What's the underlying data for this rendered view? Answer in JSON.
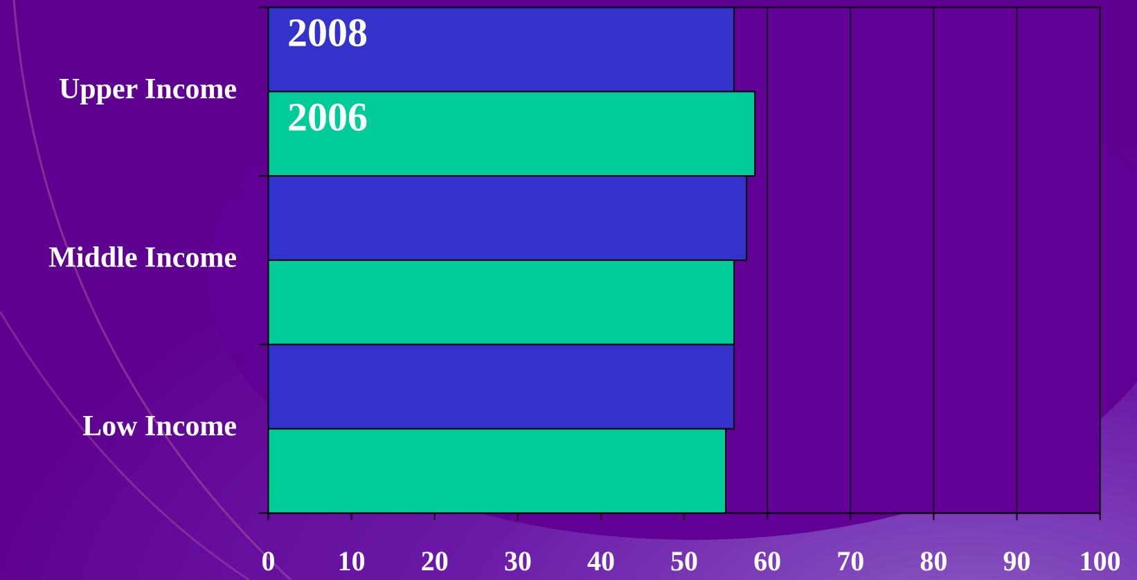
{
  "chart_data": {
    "type": "hbar",
    "categories": [
      "Upper Income",
      "Middle Income",
      "Low Income"
    ],
    "series": [
      {
        "name": "2008",
        "color": "#3333cc",
        "values": [
          56,
          57.5,
          56
        ]
      },
      {
        "name": "2006",
        "color": "#00cc99",
        "values": [
          58.5,
          56,
          55
        ]
      }
    ],
    "xlim": [
      0,
      100
    ],
    "xticks": [
      0,
      10,
      20,
      30,
      40,
      50,
      60,
      70,
      80,
      90,
      100
    ],
    "grid": true
  }
}
